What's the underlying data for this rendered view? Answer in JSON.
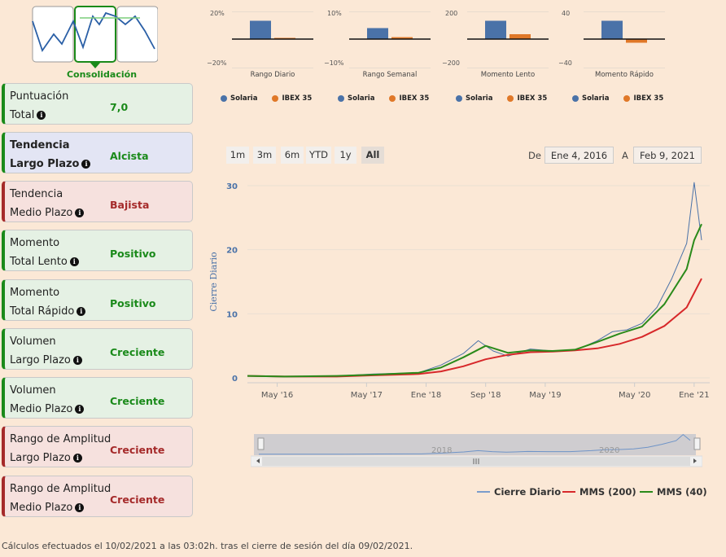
{
  "pattern": {
    "label": "Consolidación"
  },
  "cards": [
    {
      "line1": "Puntuación",
      "line2": "Total",
      "value": "7,0",
      "style": "green",
      "sentiment": "pos",
      "bold": false
    },
    {
      "line1": "Tendencia",
      "line2": "Largo Plazo",
      "value": "Alcista",
      "style": "blue",
      "sentiment": "pos",
      "bold": true
    },
    {
      "line1": "Tendencia",
      "line2": "Medio Plazo",
      "value": "Bajista",
      "style": "red",
      "sentiment": "neg",
      "bold": false
    },
    {
      "line1": "Momento",
      "line2": "Total Lento",
      "value": "Positivo",
      "style": "green",
      "sentiment": "pos",
      "bold": false
    },
    {
      "line1": "Momento",
      "line2": "Total Rápido",
      "value": "Positivo",
      "style": "green",
      "sentiment": "pos",
      "bold": false
    },
    {
      "line1": "Volumen",
      "line2": "Largo Plazo",
      "value": "Creciente",
      "style": "green",
      "sentiment": "pos",
      "bold": false
    },
    {
      "line1": "Volumen",
      "line2": "Medio Plazo",
      "value": "Creciente",
      "style": "green",
      "sentiment": "pos",
      "bold": false
    },
    {
      "line1": "Rango de Amplitud",
      "line2": "Largo Plazo",
      "value": "Creciente",
      "style": "red",
      "sentiment": "neg",
      "bold": false
    },
    {
      "line1": "Rango de Amplitud",
      "line2": "Medio Plazo",
      "value": "Creciente",
      "style": "red",
      "sentiment": "neg",
      "bold": false
    }
  ],
  "mini_legend": {
    "series_a": "Solaria",
    "series_b": "IBEX 35",
    "color_a": "#4a72a8",
    "color_b": "#e07828"
  },
  "mini_charts": [
    {
      "title": "Rango Diario",
      "top_tick": "20%",
      "bottom_tick": "−20%",
      "ymax": 20,
      "a": 15,
      "b": 1
    },
    {
      "title": "Rango Semanal",
      "top_tick": "10%",
      "bottom_tick": "−10%",
      "ymax": 10,
      "a": 4.5,
      "b": 0.8
    },
    {
      "title": "Momento Lento",
      "top_tick": "200",
      "bottom_tick": "−200",
      "ymax": 200,
      "a": 150,
      "b": 40
    },
    {
      "title": "Momento Rápido",
      "top_tick": "40",
      "bottom_tick": "−40",
      "ymax": 40,
      "a": 30,
      "b": -6
    }
  ],
  "range": {
    "buttons": [
      "1m",
      "3m",
      "6m",
      "YTD",
      "1y",
      "All"
    ],
    "active": "All",
    "from_label": "De",
    "from_value": "Ene 4, 2016",
    "to_label": "A",
    "to_value": "Feb 9, 2021"
  },
  "chart_data": {
    "type": "line",
    "ylabel": "Cierre Diario",
    "ylim": [
      0,
      30
    ],
    "yticks": [
      "0",
      "10",
      "20",
      "30"
    ],
    "xticks": [
      "May '16",
      "May '17",
      "Ene '18",
      "Sep '18",
      "May '19",
      "May '20",
      "Ene '21"
    ],
    "grid": true,
    "series": [
      {
        "name": "Cierre Diario",
        "color": "#4a72a8",
        "x": [
          "2016-01",
          "2016-06",
          "2017-01",
          "2017-06",
          "2017-12",
          "2018-03",
          "2018-06",
          "2018-08",
          "2018-10",
          "2018-12",
          "2019-03",
          "2019-06",
          "2019-09",
          "2019-12",
          "2020-02",
          "2020-04",
          "2020-06",
          "2020-08",
          "2020-10",
          "2020-12",
          "2021-01",
          "2021-02"
        ],
        "values": [
          0.3,
          0.2,
          0.3,
          0.6,
          0.8,
          2.0,
          3.8,
          5.8,
          4.2,
          3.4,
          4.5,
          4.2,
          4.3,
          5.8,
          7.2,
          7.5,
          8.5,
          11,
          15.5,
          21,
          30.5,
          21.5
        ]
      },
      {
        "name": "MMS (200)",
        "color": "#d7282a",
        "x": [
          "2016-01",
          "2016-06",
          "2017-01",
          "2017-06",
          "2017-12",
          "2018-03",
          "2018-06",
          "2018-09",
          "2018-12",
          "2019-03",
          "2019-06",
          "2019-09",
          "2019-12",
          "2020-03",
          "2020-06",
          "2020-09",
          "2020-12",
          "2021-02"
        ],
        "values": [
          0.3,
          0.2,
          0.2,
          0.4,
          0.6,
          1.0,
          1.8,
          2.9,
          3.6,
          4.0,
          4.1,
          4.3,
          4.6,
          5.3,
          6.4,
          8.1,
          11,
          15.5
        ]
      },
      {
        "name": "MMS (40)",
        "color": "#2a8a1a",
        "x": [
          "2016-01",
          "2016-06",
          "2017-01",
          "2017-06",
          "2017-12",
          "2018-03",
          "2018-06",
          "2018-09",
          "2018-12",
          "2019-03",
          "2019-06",
          "2019-09",
          "2019-12",
          "2020-03",
          "2020-06",
          "2020-09",
          "2020-12",
          "2021-01",
          "2021-02"
        ],
        "values": [
          0.3,
          0.2,
          0.3,
          0.5,
          0.8,
          1.6,
          3.2,
          5.0,
          3.9,
          4.3,
          4.2,
          4.4,
          5.6,
          6.9,
          8.0,
          11.5,
          17,
          21.5,
          24
        ]
      }
    ]
  },
  "navigator": {
    "labels": [
      "2018",
      "2020"
    ]
  },
  "footer": "Cálculos efectuados el 10/02/2021 a las 03:02h. tras el cierre de sesión del día 09/02/2021."
}
